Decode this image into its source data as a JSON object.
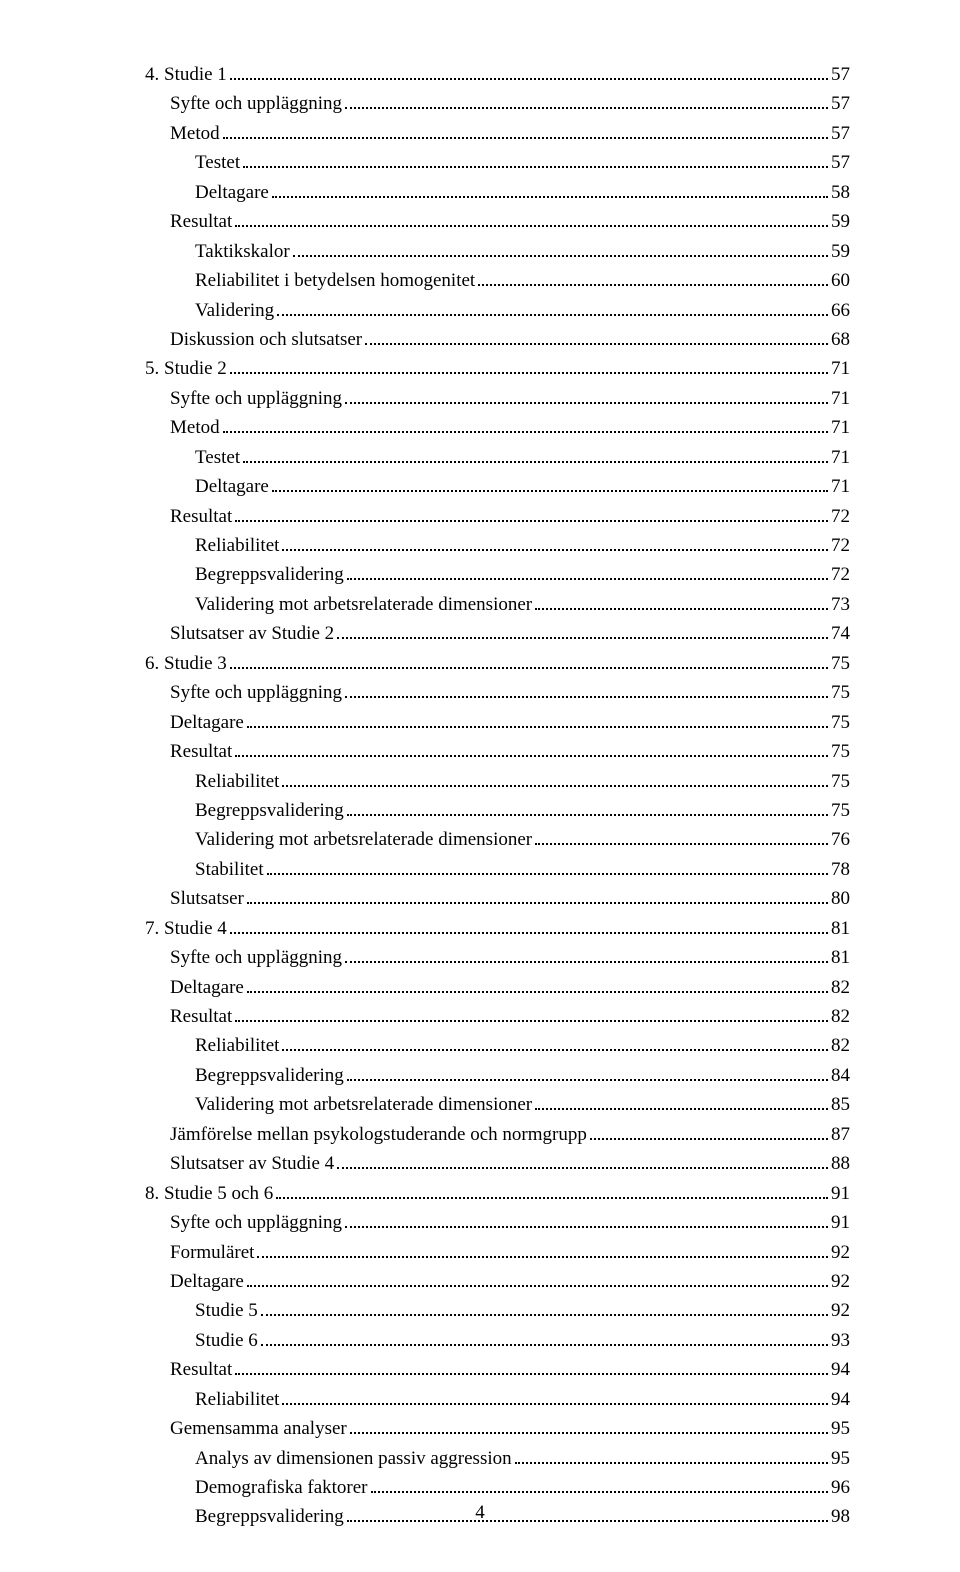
{
  "indentPx": 25,
  "fontSizePt": 14,
  "fontFamily": "Times New Roman",
  "textColor": "#000000",
  "backgroundColor": "#ffffff",
  "pageNumber": "4",
  "entries": [
    {
      "label": "4. Studie 1",
      "page": "57",
      "indent": 0
    },
    {
      "label": "Syfte och uppläggning",
      "page": "57",
      "indent": 1
    },
    {
      "label": "Metod",
      "page": "57",
      "indent": 1
    },
    {
      "label": "Testet",
      "page": "57",
      "indent": 2
    },
    {
      "label": "Deltagare",
      "page": "58",
      "indent": 2
    },
    {
      "label": "Resultat",
      "page": "59",
      "indent": 1
    },
    {
      "label": "Taktikskalor",
      "page": "59",
      "indent": 2
    },
    {
      "label": "Reliabilitet i betydelsen homogenitet",
      "page": "60",
      "indent": 2
    },
    {
      "label": "Validering",
      "page": "66",
      "indent": 2
    },
    {
      "label": "Diskussion och slutsatser",
      "page": "68",
      "indent": 1
    },
    {
      "label": "5. Studie 2",
      "page": "71",
      "indent": 0
    },
    {
      "label": "Syfte och uppläggning",
      "page": "71",
      "indent": 1
    },
    {
      "label": "Metod",
      "page": "71",
      "indent": 1
    },
    {
      "label": "Testet",
      "page": "71",
      "indent": 2
    },
    {
      "label": "Deltagare",
      "page": "71",
      "indent": 2
    },
    {
      "label": "Resultat",
      "page": "72",
      "indent": 1
    },
    {
      "label": "Reliabilitet",
      "page": "72",
      "indent": 2
    },
    {
      "label": "Begreppsvalidering",
      "page": "72",
      "indent": 2
    },
    {
      "label": "Validering mot arbetsrelaterade dimensioner",
      "page": "73",
      "indent": 2
    },
    {
      "label": "Slutsatser av Studie 2",
      "page": "74",
      "indent": 1
    },
    {
      "label": "6. Studie 3",
      "page": "75",
      "indent": 0
    },
    {
      "label": "Syfte och uppläggning",
      "page": "75",
      "indent": 1
    },
    {
      "label": "Deltagare",
      "page": "75",
      "indent": 1
    },
    {
      "label": "Resultat",
      "page": "75",
      "indent": 1
    },
    {
      "label": "Reliabilitet",
      "page": "75",
      "indent": 2
    },
    {
      "label": "Begreppsvalidering",
      "page": "75",
      "indent": 2
    },
    {
      "label": "Validering mot arbetsrelaterade dimensioner",
      "page": "76",
      "indent": 2
    },
    {
      "label": "Stabilitet",
      "page": "78",
      "indent": 2
    },
    {
      "label": "Slutsatser",
      "page": "80",
      "indent": 1
    },
    {
      "label": "7. Studie 4",
      "page": "81",
      "indent": 0
    },
    {
      "label": "Syfte och uppläggning",
      "page": "81",
      "indent": 1
    },
    {
      "label": "Deltagare",
      "page": "82",
      "indent": 1
    },
    {
      "label": "Resultat",
      "page": "82",
      "indent": 1
    },
    {
      "label": "Reliabilitet",
      "page": "82",
      "indent": 2
    },
    {
      "label": "Begreppsvalidering",
      "page": "84",
      "indent": 2
    },
    {
      "label": "Validering mot arbetsrelaterade dimensioner",
      "page": "85",
      "indent": 2
    },
    {
      "label": "Jämförelse mellan psykologstuderande och normgrupp",
      "page": "87",
      "indent": 1
    },
    {
      "label": "Slutsatser av Studie 4",
      "page": "88",
      "indent": 1
    },
    {
      "label": "8. Studie 5 och 6",
      "page": "91",
      "indent": 0
    },
    {
      "label": "Syfte och uppläggning",
      "page": "91",
      "indent": 1
    },
    {
      "label": "Formuläret",
      "page": "92",
      "indent": 1
    },
    {
      "label": "Deltagare",
      "page": "92",
      "indent": 1
    },
    {
      "label": "Studie 5",
      "page": "92",
      "indent": 2
    },
    {
      "label": "Studie 6",
      "page": "93",
      "indent": 2
    },
    {
      "label": "Resultat",
      "page": "94",
      "indent": 1
    },
    {
      "label": "Reliabilitet",
      "page": "94",
      "indent": 2
    },
    {
      "label": "Gemensamma analyser",
      "page": "95",
      "indent": 1
    },
    {
      "label": "Analys av dimensionen passiv aggression",
      "page": "95",
      "indent": 2
    },
    {
      "label": "Demografiska faktorer",
      "page": "96",
      "indent": 2
    },
    {
      "label": "Begreppsvalidering",
      "page": "98",
      "indent": 2
    }
  ]
}
